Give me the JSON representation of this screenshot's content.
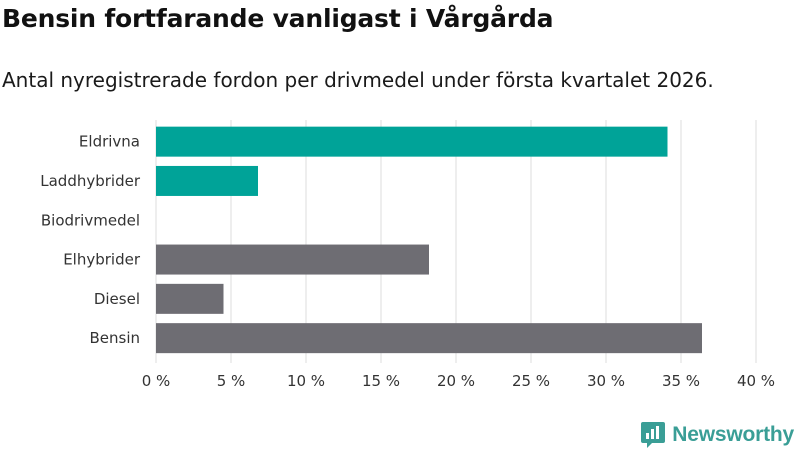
{
  "title": "Bensin fortfarande vanligast i Vårgårda",
  "subtitle": "Antal nyregistrerade fordon per drivmedel under första kvartalet 2026.",
  "brand": {
    "name": "Newsworthy",
    "icon": "newsworthy-logo-icon",
    "color": "#3a9e96"
  },
  "colors": {
    "electric": "#00a398",
    "other": "#6e6d73",
    "grid": "#dddddd"
  },
  "chart_data": {
    "type": "bar",
    "orientation": "horizontal",
    "title": "Bensin fortfarande vanligast i Vårgårda",
    "xlabel": "",
    "ylabel": "",
    "xlim": [
      0,
      40
    ],
    "xticks": [
      0,
      5,
      10,
      15,
      20,
      25,
      30,
      35,
      40
    ],
    "tick_labels": [
      "0 %",
      "5 %",
      "10 %",
      "15 %",
      "20 %",
      "25 %",
      "30 %",
      "35 %",
      "40 %"
    ],
    "unit": "%",
    "grid": true,
    "categories": [
      "Eldrivna",
      "Laddhybrider",
      "Biodrivmedel",
      "Elhybrider",
      "Diesel",
      "Bensin"
    ],
    "values": [
      34.1,
      6.8,
      0,
      18.2,
      4.5,
      36.4
    ],
    "bar_colors": [
      "#00a398",
      "#00a398",
      "#00a398",
      "#6e6d73",
      "#6e6d73",
      "#6e6d73"
    ]
  }
}
